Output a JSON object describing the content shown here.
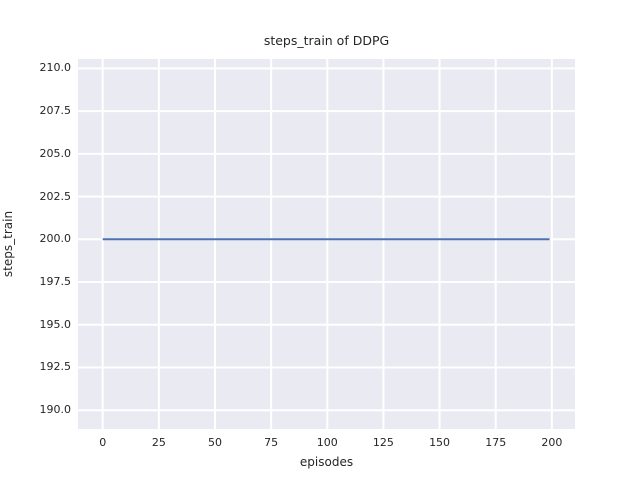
{
  "figure": {
    "background": "#ffffff"
  },
  "chart_data": {
    "type": "line",
    "title": "steps_train of DDPG",
    "xlabel": "episodes",
    "ylabel": "steps_train",
    "x_ticks": [
      0,
      25,
      50,
      75,
      100,
      125,
      150,
      175,
      200
    ],
    "x_tick_labels": [
      "0",
      "25",
      "50",
      "75",
      "100",
      "125",
      "150",
      "175",
      "200"
    ],
    "y_ticks": [
      210.0,
      207.5,
      205.0,
      202.5,
      200.0,
      197.5,
      195.0,
      192.5,
      190.0
    ],
    "y_tick_labels": [
      "210.0",
      "207.5",
      "205.0",
      "202.5",
      "200.0",
      "197.5",
      "195.0",
      "192.5",
      "190.0"
    ],
    "xlim": [
      -11,
      210.3
    ],
    "ylim": [
      188.9,
      210.55
    ],
    "grid": true,
    "legend": false,
    "plot_background": "#eaeaf2",
    "grid_color": "#ffffff",
    "text_color": "#262626",
    "series": [
      {
        "name": "steps_train",
        "color": "#4c72b0",
        "x": [
          0,
          199
        ],
        "y": [
          200,
          200
        ]
      }
    ]
  }
}
